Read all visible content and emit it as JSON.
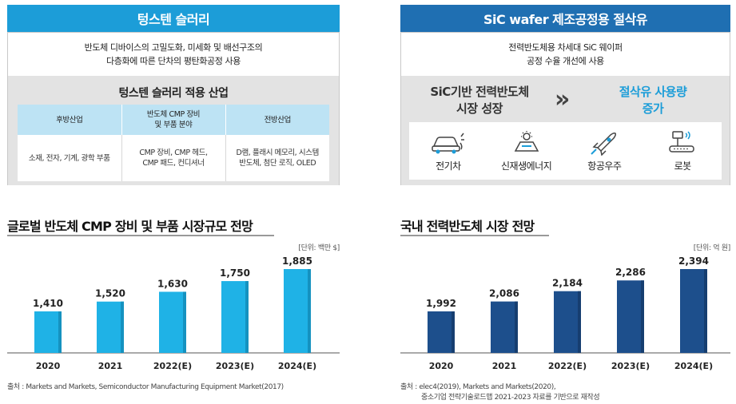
{
  "left_panel": {
    "title": "텅스텐 슬러리",
    "intro_line1": "반도체 디바이스의 고밀도화, 미세화 및 배선구조의",
    "intro_line2": "다층화에 따른 단차의 평탄화공정 사용",
    "industry_title": "텅스텐 슬러리 적용 산업",
    "columns": [
      {
        "header_line1": "후방산업",
        "header_line2": "",
        "cell_line1": "소재, 전자, 기계, 광학 부품",
        "cell_line2": ""
      },
      {
        "header_line1": "반도체 CMP 장비",
        "header_line2": "및 부품 분야",
        "cell_line1": "CMP 장비, CMP 헤드,",
        "cell_line2": "CMP 패드, 컨디셔너"
      },
      {
        "header_line1": "전방산업",
        "header_line2": "",
        "cell_line1": "D램, 플래시 메모리, 시스템",
        "cell_line2": "반도체, 첨단 로직, OLED"
      }
    ]
  },
  "right_panel": {
    "title": "SiC wafer 제조공정용 절삭유",
    "intro_line1": "전력반도체용 차세대 SiC 웨이퍼",
    "intro_line2": "공정 수율 개선에 사용",
    "growth_left_line1": "SiC기반 전력반도체",
    "growth_left_line2": "시장 성장",
    "arrow": "»",
    "growth_right_line1": "절삭유 사용량",
    "growth_right_line2": "증가",
    "apps": [
      {
        "label": "전기차",
        "icon": "electric-car-icon"
      },
      {
        "label": "신재생에너지",
        "icon": "solar-energy-icon"
      },
      {
        "label": "항공우주",
        "icon": "rocket-icon"
      },
      {
        "label": "로봇",
        "icon": "robot-arm-icon"
      }
    ]
  },
  "colors": {
    "left_banner": "#1c9dd8",
    "right_banner": "#1f6fb2",
    "left_bars": "#1fb2e6",
    "right_bars": "#1d4f8c",
    "growth_right_text": "#1c9dd8",
    "table_header": "#bde3f4"
  },
  "chart_data": [
    {
      "type": "bar",
      "title": "글로벌 반도체 CMP 장비 및 부품 시장규모 전망",
      "unit": "[단위: 백만 $]",
      "categories": [
        "2020",
        "2021",
        "2022(E)",
        "2023(E)",
        "2024(E)"
      ],
      "values": [
        1410,
        1520,
        1630,
        1750,
        1885
      ],
      "value_labels": [
        "1,410",
        "1,520",
        "1,630",
        "1,750",
        "1,885"
      ],
      "source": "출처 : Markets and Markets, Semiconductor Manufacturing Equipment Market(2017)",
      "source_line2": "",
      "grid": false
    },
    {
      "type": "bar",
      "title": "국내 전력반도체 시장 전망",
      "unit": "[단위: 억 원]",
      "categories": [
        "2020",
        "2021",
        "2022(E)",
        "2023(E)",
        "2024(E)"
      ],
      "values": [
        1992,
        2086,
        2184,
        2286,
        2394
      ],
      "value_labels": [
        "1,992",
        "2,086",
        "2,184",
        "2,286",
        "2,394"
      ],
      "source": "출처 : elec4(2019), Markets and Markets(2020),",
      "source_line2": "중소기업 전략기술로드맵 2021-2023 자료를 기반으로 재작성",
      "grid": false
    }
  ]
}
